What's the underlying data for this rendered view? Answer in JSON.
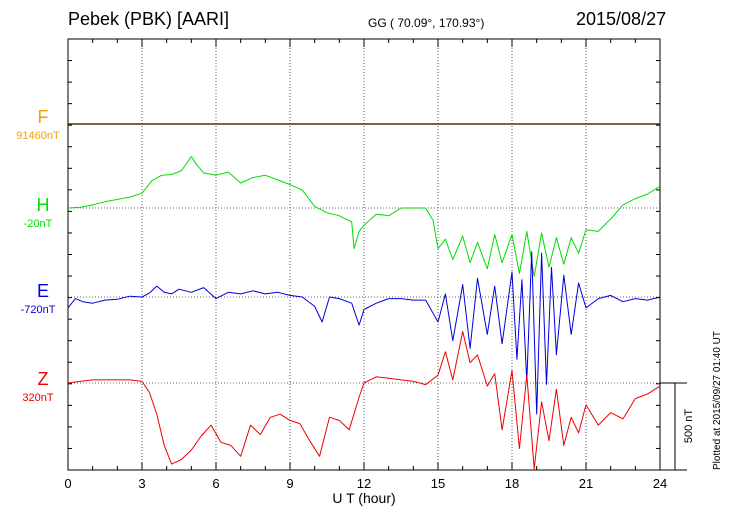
{
  "header": {
    "station": "Pebek (PBK)  [AARI]",
    "coords": "GG ( 70.09°, 170.93°)",
    "date": "2015/08/27"
  },
  "footer": {
    "plotted": "Plotted at 2015/09/27 01:40 UT"
  },
  "chart_data": {
    "type": "line",
    "xlabel": "U T (hour)",
    "xlim": [
      0,
      24
    ],
    "xticks": [
      0,
      3,
      6,
      9,
      12,
      15,
      18,
      21,
      24
    ],
    "scale_bar": {
      "label": "500 nT",
      "value": 500
    },
    "colors": {
      "F": "#f0a000",
      "H": "#00dd00",
      "E": "#0000dd",
      "Z": "#ee0000"
    },
    "series": [
      {
        "name": "F",
        "baseline": "91460nT",
        "x": [
          0,
          24
        ],
        "y": [
          0,
          0
        ]
      },
      {
        "name": "H",
        "baseline": "-20nT",
        "x": [
          0,
          0.5,
          1,
          1.5,
          2,
          2.5,
          3,
          3.4,
          3.8,
          4.2,
          4.6,
          5,
          5.2,
          5.5,
          6,
          6.5,
          7,
          7.5,
          8,
          8.5,
          9,
          9.5,
          10,
          10.5,
          11,
          11.5,
          11.6,
          11.8,
          12,
          12.5,
          13,
          13.5,
          14,
          14.5,
          14.8,
          15,
          15.3,
          15.6,
          16,
          16.3,
          16.6,
          17,
          17.3,
          17.6,
          18,
          18.3,
          18.6,
          18.9,
          19.2,
          19.5,
          19.8,
          20.1,
          20.4,
          20.7,
          21,
          21.5,
          22,
          22.5,
          23,
          23.5,
          24
        ],
        "y": [
          0,
          5,
          20,
          40,
          55,
          70,
          95,
          175,
          210,
          215,
          240,
          330,
          280,
          225,
          210,
          230,
          160,
          195,
          210,
          180,
          150,
          115,
          10,
          -30,
          -50,
          -90,
          -260,
          -150,
          -110,
          -40,
          -50,
          0,
          0,
          0,
          -80,
          -260,
          -200,
          -330,
          -180,
          -350,
          -220,
          -390,
          -170,
          -350,
          -170,
          -420,
          -150,
          -440,
          -160,
          -380,
          -190,
          -360,
          -190,
          -290,
          -140,
          -150,
          -70,
          20,
          60,
          90,
          140
        ]
      },
      {
        "name": "E",
        "baseline": "-720nT",
        "x": [
          0,
          0.3,
          0.6,
          1,
          1.5,
          2,
          2.5,
          3,
          3.3,
          3.6,
          3.9,
          4.2,
          4.5,
          5,
          5.5,
          6,
          6.5,
          7,
          7.5,
          8,
          8.5,
          9,
          9.5,
          10,
          10.3,
          10.6,
          11,
          11.5,
          11.8,
          12,
          12.5,
          13,
          13.5,
          14,
          14.5,
          15,
          15.3,
          15.6,
          16,
          16.3,
          16.6,
          17,
          17.3,
          17.6,
          18,
          18.2,
          18.4,
          18.6,
          18.8,
          19,
          19.2,
          19.4,
          19.6,
          19.8,
          20.1,
          20.4,
          20.7,
          21,
          21.5,
          22,
          22.5,
          23,
          23.5,
          24
        ],
        "y": [
          -790,
          -730,
          -750,
          -760,
          -740,
          -735,
          -715,
          -720,
          -695,
          -650,
          -690,
          -700,
          -670,
          -690,
          -660,
          -730,
          -690,
          -700,
          -680,
          -700,
          -690,
          -710,
          -720,
          -780,
          -880,
          -720,
          -730,
          -760,
          -900,
          -800,
          -760,
          -730,
          -730,
          -740,
          -740,
          -880,
          -700,
          -1000,
          -640,
          -1050,
          -600,
          -960,
          -650,
          -1020,
          -560,
          -1120,
          -610,
          -1260,
          -430,
          -1470,
          -440,
          -1280,
          -530,
          -1090,
          -580,
          -960,
          -630,
          -790,
          -730,
          -710,
          -750,
          -730,
          -740,
          -720
        ]
      },
      {
        "name": "Z",
        "baseline": "320nT",
        "x": [
          0,
          0.5,
          1,
          1.5,
          2,
          2.5,
          3,
          3.3,
          3.6,
          3.9,
          4.2,
          4.6,
          5,
          5.4,
          5.8,
          6.2,
          6.6,
          7,
          7.4,
          7.8,
          8.2,
          8.6,
          9,
          9.4,
          9.8,
          10.2,
          10.6,
          11,
          11.4,
          11.8,
          12,
          12.5,
          13,
          13.5,
          14,
          14.5,
          15,
          15.3,
          15.6,
          16,
          16.3,
          16.6,
          17,
          17.3,
          17.6,
          18,
          18.3,
          18.6,
          18.9,
          19.2,
          19.5,
          19.8,
          20.1,
          20.4,
          20.7,
          21,
          21.5,
          22,
          22.5,
          23,
          23.5,
          24
        ],
        "y": [
          320,
          330,
          340,
          340,
          340,
          340,
          330,
          260,
          120,
          -80,
          -200,
          -170,
          -110,
          -20,
          50,
          -60,
          -80,
          -150,
          50,
          -10,
          100,
          120,
          80,
          60,
          -50,
          -150,
          100,
          80,
          20,
          230,
          320,
          360,
          350,
          340,
          330,
          310,
          370,
          520,
          340,
          650,
          450,
          500,
          300,
          380,
          20,
          400,
          -100,
          370,
          -230,
          200,
          -50,
          280,
          -80,
          100,
          0,
          180,
          50,
          130,
          90,
          220,
          250,
          300
        ]
      }
    ]
  }
}
